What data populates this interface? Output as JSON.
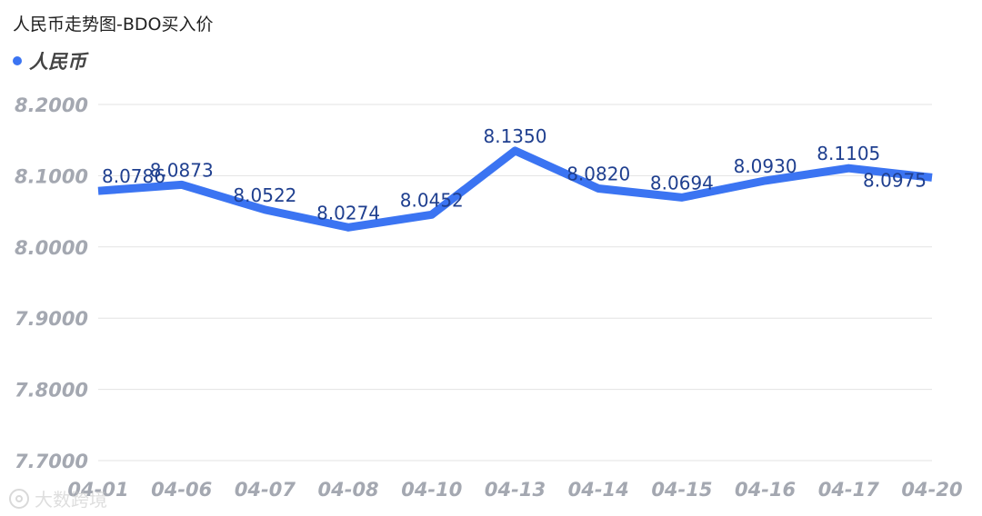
{
  "chart_data": {
    "type": "line",
    "title": "人民币走势图-BDO买入价",
    "categories": [
      "04-01",
      "04-06",
      "04-07",
      "04-08",
      "04-10",
      "04-13",
      "04-14",
      "04-15",
      "04-16",
      "04-17",
      "04-20"
    ],
    "series": [
      {
        "name": "人民币",
        "values": [
          8.0786,
          8.0873,
          8.0522,
          8.0274,
          8.0452,
          8.135,
          8.082,
          8.0694,
          8.093,
          8.1105,
          8.0975
        ],
        "color": "#3b74f2"
      }
    ],
    "data_labels": [
      "8.0786",
      "8.0873",
      "8.0522",
      "8.0274",
      "8.0452",
      "8.1350",
      "8.0820",
      "8.0694",
      "8.0930",
      "8.1105",
      "8.0975"
    ],
    "ylim": [
      7.7,
      8.2
    ],
    "yticks": [
      "7.7000",
      "7.8000",
      "7.9000",
      "8.0000",
      "8.1000",
      "8.2000"
    ],
    "xlabel": "",
    "ylabel": "",
    "grid": true,
    "legend_position": "top-left"
  },
  "watermark": {
    "text": "大数跨境",
    "icon": "brand-logo-icon"
  }
}
